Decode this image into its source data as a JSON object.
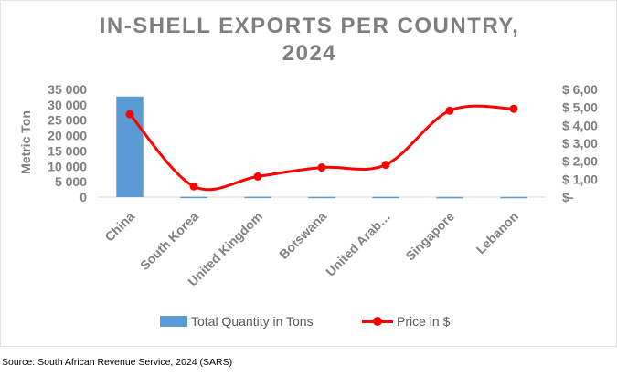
{
  "title_line1": "IN-SHELL EXPORTS PER COUNTRY,",
  "title_line2": "2024",
  "source": "Source: South African Revenue Service, 2024 (SARS)",
  "colors": {
    "bar": "#5b9bd5",
    "line": "#ff0000",
    "text": "#7f7f7f"
  },
  "chart_data": {
    "type": "bar",
    "title": "IN-SHELL EXPORTS PER COUNTRY, 2024",
    "categories": [
      "China",
      "South Korea",
      "United Kingdom",
      "Botswana",
      "United Arab…",
      "Singapore",
      "Lebanon"
    ],
    "ylabel": "Metric Ton",
    "ylim": [
      0,
      35000
    ],
    "yticks": [
      "35 000",
      "30 000",
      "25 000",
      "20 000",
      "15 000",
      "10 000",
      "5 000",
      "0"
    ],
    "y2lim": [
      0,
      6
    ],
    "y2ticks": [
      "$ 6,00",
      "$ 5,00",
      "$ 4,00",
      "$ 3,00",
      "$ 2,00",
      "$ 1,00",
      "$-"
    ],
    "series": [
      {
        "name": "Total Quantity in Tons",
        "type": "bar",
        "axis": "left",
        "values": [
          32700,
          100,
          120,
          90,
          80,
          60,
          70
        ]
      },
      {
        "name": "Price in $",
        "type": "line",
        "axis": "right",
        "smooth": true,
        "values": [
          4.62,
          0.6,
          1.15,
          1.65,
          1.8,
          4.82,
          4.92
        ]
      }
    ],
    "grid": false,
    "legend": "bottom"
  }
}
